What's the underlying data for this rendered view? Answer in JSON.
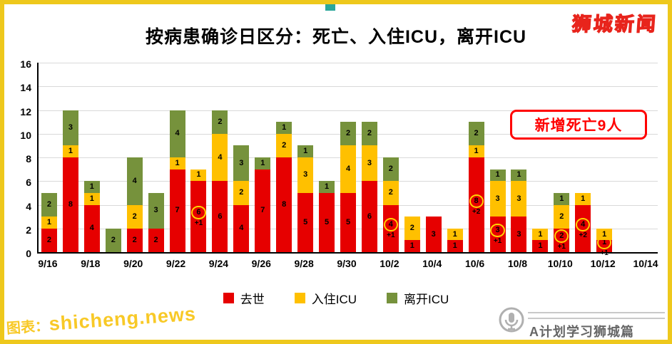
{
  "page": {
    "frame_color": "#eec81c",
    "background": "#ffffff"
  },
  "header": {
    "title": "按病患确诊日区分：死亡、入住ICU，离开ICU",
    "logo": "狮城新闻",
    "decor_square_color": "#2ba79b"
  },
  "annotation_box": {
    "text": "新增死亡9人",
    "color": "#ff0000"
  },
  "watermark": {
    "prefix": "图表：",
    "site": "shicheng.news"
  },
  "footer": {
    "credit": "A计划学习狮城篇"
  },
  "chart_data": {
    "type": "bar",
    "stacked": true,
    "title": "按病患确诊日区分：死亡、入住ICU，离开ICU",
    "xlabel": "",
    "ylabel": "",
    "ylim": [
      0,
      16
    ],
    "y_ticks": [
      0,
      2,
      4,
      6,
      8,
      10,
      12,
      14,
      16
    ],
    "grid": true,
    "legend_position": "bottom",
    "categories": [
      "9/16",
      "9/17",
      "9/18",
      "9/19",
      "9/20",
      "9/21",
      "9/22",
      "9/23",
      "9/24",
      "9/25",
      "9/26",
      "9/27",
      "9/28",
      "9/29",
      "9/30",
      "10/1",
      "10/2",
      "10/3",
      "10/4",
      "10/5",
      "10/6",
      "10/7",
      "10/8",
      "10/9",
      "10/10",
      "10/11",
      "10/12",
      "10/13",
      "10/14"
    ],
    "x_tick_labels": [
      "9/16",
      "9/18",
      "9/20",
      "9/22",
      "9/24",
      "9/26",
      "9/28",
      "9/30",
      "10/2",
      "10/4",
      "10/6",
      "10/8",
      "10/10",
      "10/12",
      "10/14"
    ],
    "series": [
      {
        "name": "去世",
        "color": "#e60000",
        "values": [
          2,
          8,
          4,
          0,
          2,
          2,
          7,
          6,
          6,
          4,
          7,
          8,
          5,
          5,
          5,
          6,
          4,
          1,
          3,
          1,
          8,
          3,
          3,
          1,
          2,
          4,
          1,
          0,
          0
        ]
      },
      {
        "name": "入住ICU",
        "color": "#ffc000",
        "values": [
          1,
          1,
          1,
          0,
          2,
          0,
          1,
          1,
          4,
          2,
          0,
          2,
          3,
          0,
          4,
          3,
          2,
          2,
          0,
          1,
          1,
          3,
          3,
          1,
          2,
          1,
          1,
          0,
          0
        ]
      },
      {
        "name": "离开ICU",
        "color": "#76923c",
        "values": [
          2,
          3,
          1,
          2,
          4,
          3,
          4,
          0,
          2,
          3,
          1,
          1,
          1,
          1,
          2,
          2,
          2,
          0,
          0,
          0,
          2,
          1,
          1,
          0,
          1,
          0,
          0,
          0,
          0
        ]
      }
    ],
    "highlights": [
      {
        "date": "9/23",
        "value": 6,
        "delta": "+1"
      },
      {
        "date": "10/2",
        "value": 4,
        "delta": "+1"
      },
      {
        "date": "10/6",
        "value": 8,
        "delta": "+2"
      },
      {
        "date": "10/7",
        "value": 3,
        "delta": "+1"
      },
      {
        "date": "10/10",
        "value": 2,
        "delta": "+1"
      },
      {
        "date": "10/11",
        "value": 4,
        "delta": "+2"
      },
      {
        "date": "10/12",
        "value": 1,
        "delta": "+1"
      }
    ]
  }
}
